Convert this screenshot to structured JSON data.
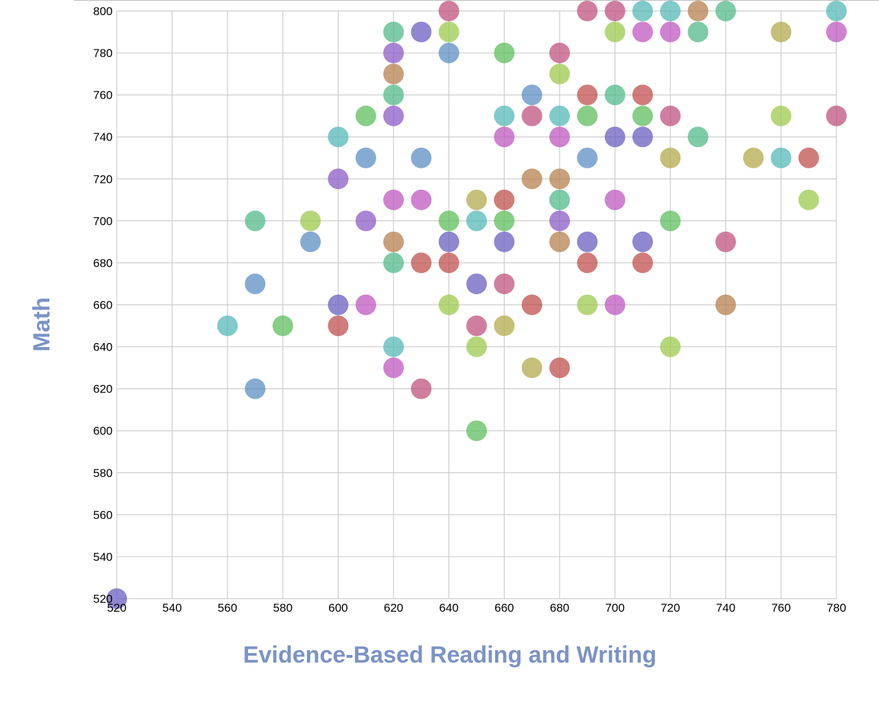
{
  "chart_data": {
    "type": "scatter",
    "title": "",
    "xlabel": "Evidence-Based Reading and Writing",
    "ylabel": "Math",
    "xlim": [
      520,
      780
    ],
    "ylim": [
      520,
      800
    ],
    "xticks": [
      "520",
      "540",
      "560",
      "580",
      "600",
      "620",
      "640",
      "660",
      "680",
      "700",
      "720",
      "740",
      "760",
      "780"
    ],
    "yticks": [
      "520",
      "540",
      "560",
      "580",
      "600",
      "620",
      "640",
      "660",
      "680",
      "700",
      "720",
      "740",
      "760",
      "780",
      "800"
    ],
    "grid": true,
    "legend": "none",
    "colors": {
      "axis_title": "#7b93c6",
      "grid": "#cccccc",
      "palette": [
        "#c0504d",
        "#b5804f",
        "#b2a94c",
        "#9cc94d",
        "#5fbe5e",
        "#52b98a",
        "#56b8b8",
        "#5d8fc4",
        "#6a5fbf",
        "#8c5cc7",
        "#bf58c0",
        "#c0537f"
      ]
    },
    "points": [
      {
        "x": 520,
        "y": 520
      },
      {
        "x": 560,
        "y": 650
      },
      {
        "x": 570,
        "y": 700
      },
      {
        "x": 570,
        "y": 670
      },
      {
        "x": 570,
        "y": 620
      },
      {
        "x": 580,
        "y": 650
      },
      {
        "x": 590,
        "y": 700
      },
      {
        "x": 590,
        "y": 690
      },
      {
        "x": 600,
        "y": 740
      },
      {
        "x": 600,
        "y": 720
      },
      {
        "x": 600,
        "y": 660
      },
      {
        "x": 600,
        "y": 650
      },
      {
        "x": 610,
        "y": 750
      },
      {
        "x": 610,
        "y": 730
      },
      {
        "x": 610,
        "y": 700
      },
      {
        "x": 610,
        "y": 660
      },
      {
        "x": 620,
        "y": 790
      },
      {
        "x": 620,
        "y": 780
      },
      {
        "x": 620,
        "y": 770
      },
      {
        "x": 620,
        "y": 760
      },
      {
        "x": 620,
        "y": 750
      },
      {
        "x": 620,
        "y": 710
      },
      {
        "x": 620,
        "y": 690
      },
      {
        "x": 620,
        "y": 680
      },
      {
        "x": 620,
        "y": 640
      },
      {
        "x": 620,
        "y": 630
      },
      {
        "x": 630,
        "y": 790
      },
      {
        "x": 630,
        "y": 730
      },
      {
        "x": 630,
        "y": 710
      },
      {
        "x": 630,
        "y": 680
      },
      {
        "x": 630,
        "y": 620
      },
      {
        "x": 640,
        "y": 800
      },
      {
        "x": 640,
        "y": 790
      },
      {
        "x": 640,
        "y": 780
      },
      {
        "x": 640,
        "y": 700
      },
      {
        "x": 640,
        "y": 690
      },
      {
        "x": 640,
        "y": 680
      },
      {
        "x": 640,
        "y": 660
      },
      {
        "x": 650,
        "y": 710
      },
      {
        "x": 650,
        "y": 700
      },
      {
        "x": 650,
        "y": 670
      },
      {
        "x": 650,
        "y": 650
      },
      {
        "x": 650,
        "y": 640
      },
      {
        "x": 650,
        "y": 600
      },
      {
        "x": 660,
        "y": 780
      },
      {
        "x": 660,
        "y": 750
      },
      {
        "x": 660,
        "y": 740
      },
      {
        "x": 660,
        "y": 710
      },
      {
        "x": 660,
        "y": 700
      },
      {
        "x": 660,
        "y": 690
      },
      {
        "x": 660,
        "y": 670
      },
      {
        "x": 660,
        "y": 650
      },
      {
        "x": 670,
        "y": 760
      },
      {
        "x": 670,
        "y": 750
      },
      {
        "x": 670,
        "y": 720
      },
      {
        "x": 670,
        "y": 660
      },
      {
        "x": 670,
        "y": 630
      },
      {
        "x": 680,
        "y": 780
      },
      {
        "x": 680,
        "y": 770
      },
      {
        "x": 680,
        "y": 750
      },
      {
        "x": 680,
        "y": 740
      },
      {
        "x": 680,
        "y": 720
      },
      {
        "x": 680,
        "y": 710
      },
      {
        "x": 680,
        "y": 700
      },
      {
        "x": 680,
        "y": 690
      },
      {
        "x": 680,
        "y": 630
      },
      {
        "x": 690,
        "y": 800
      },
      {
        "x": 690,
        "y": 760
      },
      {
        "x": 690,
        "y": 750
      },
      {
        "x": 690,
        "y": 730
      },
      {
        "x": 690,
        "y": 690
      },
      {
        "x": 690,
        "y": 680
      },
      {
        "x": 690,
        "y": 660
      },
      {
        "x": 700,
        "y": 800
      },
      {
        "x": 700,
        "y": 790
      },
      {
        "x": 700,
        "y": 760
      },
      {
        "x": 700,
        "y": 740
      },
      {
        "x": 700,
        "y": 710
      },
      {
        "x": 700,
        "y": 660
      },
      {
        "x": 710,
        "y": 800
      },
      {
        "x": 710,
        "y": 790
      },
      {
        "x": 710,
        "y": 760
      },
      {
        "x": 710,
        "y": 750
      },
      {
        "x": 710,
        "y": 740
      },
      {
        "x": 710,
        "y": 690
      },
      {
        "x": 710,
        "y": 680
      },
      {
        "x": 720,
        "y": 800
      },
      {
        "x": 720,
        "y": 790
      },
      {
        "x": 720,
        "y": 750
      },
      {
        "x": 720,
        "y": 730
      },
      {
        "x": 720,
        "y": 700
      },
      {
        "x": 720,
        "y": 640
      },
      {
        "x": 730,
        "y": 800
      },
      {
        "x": 730,
        "y": 790
      },
      {
        "x": 730,
        "y": 740
      },
      {
        "x": 740,
        "y": 800
      },
      {
        "x": 740,
        "y": 690
      },
      {
        "x": 740,
        "y": 660
      },
      {
        "x": 750,
        "y": 730
      },
      {
        "x": 760,
        "y": 790
      },
      {
        "x": 760,
        "y": 750
      },
      {
        "x": 760,
        "y": 730
      },
      {
        "x": 770,
        "y": 730
      },
      {
        "x": 770,
        "y": 710
      },
      {
        "x": 780,
        "y": 800
      },
      {
        "x": 780,
        "y": 790
      },
      {
        "x": 780,
        "y": 750
      }
    ]
  }
}
